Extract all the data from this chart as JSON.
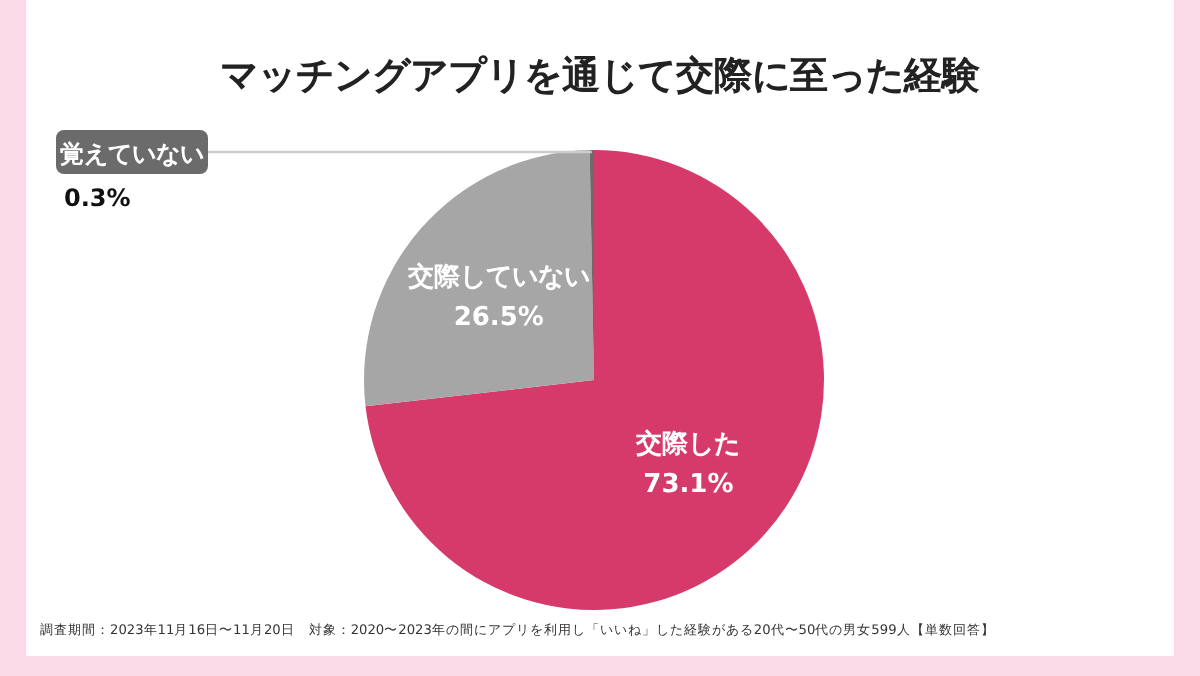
{
  "chart_data": {
    "type": "pie",
    "title": "マッチングアプリを通じて交際に至った経験",
    "categories": [
      "交際した",
      "交際していない",
      "覚えていない"
    ],
    "values": [
      73.1,
      26.5,
      0.3
    ],
    "value_labels": [
      "73.1%",
      "26.5%",
      "0.3%"
    ],
    "colors": [
      "#d63a6a",
      "#a6a6a6",
      "#6b6b6b"
    ],
    "annotations": [
      "調査期間：2023年11月16日〜11月20日　対象：2020〜2023年の間にアプリを利用し「いいね」した経験がある20代〜50代の男女599人【単数回答】"
    ]
  }
}
